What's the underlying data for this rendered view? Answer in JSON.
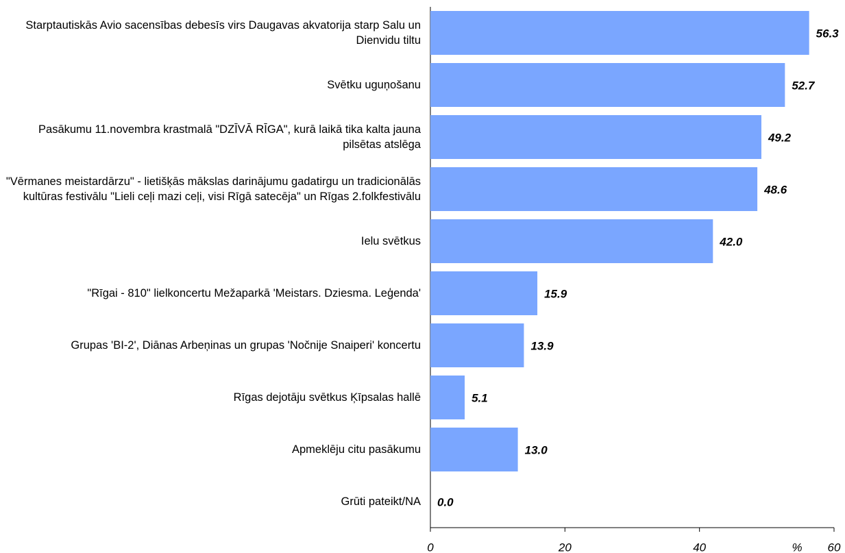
{
  "chart_data": {
    "type": "hbar",
    "categories": [
      "Starptautiskās Avio sacensības debesīs virs Daugavas akvatorija starp Salu un Dienvidu tiltu",
      "Svētku uguņošanu",
      "Pasākumu 11.novembra krastmalā \"DZĪVĀ RĪGA\", kurā laikā tika kalta jauna pilsētas atslēga",
      "\"Vērmanes meistardārzu\" - lietišķās mākslas darinājumu gadatirgu un tradicionālās kultūras festivālu \"Lieli ceļi mazi ceļi, visi Rīgā satecēja\" un Rīgas 2.folkfestivālu",
      "Ielu svētkus",
      "\"Rīgai - 810\" lielkoncertu Mežaparkā 'Meistars. Dziesma. Leģenda'",
      "Grupas 'BI-2', Diānas Arbeņinas un grupas 'Nočnije Snaiperi' koncertu",
      "Rīgas dejotāju svētkus Ķīpsalas hallē",
      "Apmeklēju citu pasākumu",
      "Grūti pateikt/NA"
    ],
    "values": [
      56.3,
      52.7,
      49.2,
      48.6,
      42,
      15.9,
      13.9,
      5.1,
      13,
      0
    ],
    "value_labels": [
      "56.3",
      "52.7",
      "49.2",
      "48.6",
      "42.0",
      "15.9",
      "13.9",
      "5.1",
      "13.0",
      "0.0"
    ],
    "color": "#7aa6ff",
    "xlabel": "%",
    "xlim": [
      0,
      60
    ],
    "xticks": [
      0,
      20,
      40,
      60
    ],
    "grid": false
  }
}
